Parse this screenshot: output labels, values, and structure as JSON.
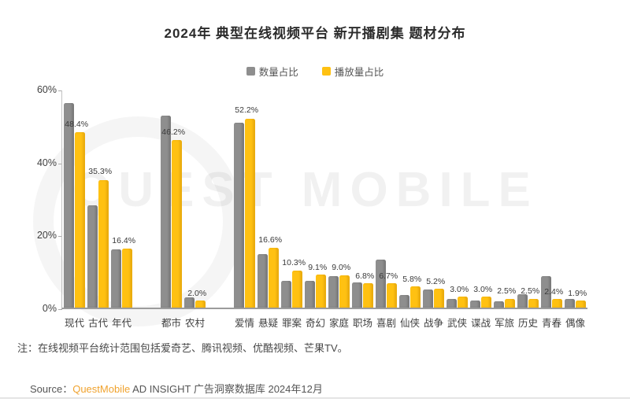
{
  "title": "2024年 典型在线视频平台 新开播剧集 题材分布",
  "legend": {
    "series1": "数量占比",
    "series2": "播放量占比"
  },
  "colors": {
    "series1": "#8E8E8E",
    "series2": "#FFC112",
    "brand": "#F0A32F"
  },
  "watermark": {
    "text": "QUEST MOBILE"
  },
  "chart_data": {
    "type": "bar",
    "title": "2024年 典型在线视频平台 新开播剧集 题材分布",
    "series_names": [
      "数量占比",
      "播放量占比"
    ],
    "ylabel": "",
    "xlabel": "",
    "ylim": [
      0,
      60
    ],
    "y_ticks": [
      {
        "label": "60%",
        "value": 60
      },
      {
        "label": "40%",
        "value": 40
      },
      {
        "label": "20%",
        "value": 20
      },
      {
        "label": "0%",
        "value": 0
      }
    ],
    "grid": false,
    "legend_position": "top",
    "value_labels_shown_for": "播放量占比",
    "note_on_series1": "数量占比 values are unlabeled in the chart; heights estimated from axis",
    "groups": [
      {
        "items": [
          {
            "label": "现代",
            "数量占比": 56.5,
            "播放量占比": 48.4
          },
          {
            "label": "古代",
            "数量占比": 28.2,
            "播放量占比": 35.3
          },
          {
            "label": "年代",
            "数量占比": 16.0,
            "播放量占比": 16.4
          }
        ]
      },
      {
        "items": [
          {
            "label": "都市",
            "数量占比": 53.0,
            "播放量占比": 46.2
          },
          {
            "label": "农村",
            "数量占比": 2.8,
            "播放量占比": 2.0
          }
        ]
      },
      {
        "items": [
          {
            "label": "爱情",
            "数量占比": 51.0,
            "播放量占比": 52.2
          },
          {
            "label": "悬疑",
            "数量占比": 14.8,
            "播放量占比": 16.6
          },
          {
            "label": "罪案",
            "数量占比": 7.4,
            "播放量占比": 10.3
          },
          {
            "label": "奇幻",
            "数量占比": 7.5,
            "播放量占比": 9.1
          },
          {
            "label": "家庭",
            "数量占比": 8.7,
            "播放量占比": 9.0
          },
          {
            "label": "职场",
            "数量占比": 7.0,
            "播放量占比": 6.8
          },
          {
            "label": "喜剧",
            "数量占比": 13.3,
            "播放量占比": 6.7
          },
          {
            "label": "仙侠",
            "数量占比": 3.5,
            "播放量占比": 5.8
          },
          {
            "label": "战争",
            "数量占比": 5.0,
            "播放量占比": 5.2
          },
          {
            "label": "武侠",
            "数量占比": 2.4,
            "播放量占比": 3.0
          },
          {
            "label": "谍战",
            "数量占比": 2.0,
            "播放量占比": 3.0
          },
          {
            "label": "军旅",
            "数量占比": 1.7,
            "播放量占比": 2.5
          },
          {
            "label": "历史",
            "数量占比": 3.6,
            "播放量占比": 2.5
          },
          {
            "label": "青春",
            "数量占比": 8.6,
            "播放量占比": 2.4
          },
          {
            "label": "偶像",
            "数量占比": 2.5,
            "播放量占比": 1.9
          }
        ]
      }
    ]
  },
  "note": "注：在线视频平台统计范围包括爱奇艺、腾讯视频、优酷视频、芒果TV。",
  "source": {
    "prefix": "Source：",
    "brand": "QuestMobile",
    "rest": " AD INSIGHT 广告洞察数据库 2024年12月"
  }
}
